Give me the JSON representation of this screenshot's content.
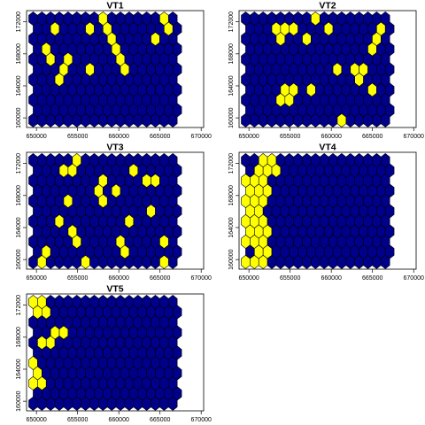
{
  "chart_data": [
    {
      "type": "hexbin-map",
      "title": "VT1",
      "xticks": [
        650000,
        655000,
        660000,
        665000,
        670000
      ],
      "yticks": [
        160000,
        164000,
        168000,
        172000
      ],
      "xlim": [
        648800,
        670300
      ],
      "ylim": [
        158800,
        173400
      ],
      "grid": {
        "x0": 649600,
        "dx": 1060,
        "y0": 159700,
        "dy": 1270,
        "rows": 11,
        "cols": 17
      },
      "highlighted": [
        [
          2,
          6
        ],
        [
          1,
          7
        ],
        [
          2,
          9
        ],
        [
          2,
          11
        ],
        [
          2,
          13
        ],
        [
          3,
          4
        ],
        [
          3,
          5
        ],
        [
          4,
          6
        ],
        [
          6,
          5
        ],
        [
          6,
          9
        ],
        [
          8,
          9
        ],
        [
          8,
          10
        ],
        [
          9,
          7
        ],
        [
          9,
          8
        ],
        [
          10,
          5
        ],
        [
          10,
          6
        ],
        [
          14,
          8
        ],
        [
          15,
          10
        ],
        [
          15,
          9
        ]
      ]
    },
    {
      "type": "hexbin-map",
      "title": "VT2",
      "xticks": [
        650000,
        655000,
        660000,
        665000,
        670000
      ],
      "yticks": [
        160000,
        164000,
        168000,
        172000
      ],
      "xlim": [
        648800,
        670300
      ],
      "ylim": [
        158800,
        173400
      ],
      "grid": {
        "x0": 649600,
        "dx": 1060,
        "y0": 159700,
        "dy": 1270,
        "rows": 11,
        "cols": 17
      },
      "highlighted": [
        [
          4,
          2
        ],
        [
          4,
          3
        ],
        [
          5,
          2
        ],
        [
          5,
          3
        ],
        [
          3,
          9
        ],
        [
          4,
          9
        ],
        [
          5,
          9
        ],
        [
          4,
          8
        ],
        [
          11,
          0
        ],
        [
          10,
          5
        ],
        [
          9,
          9
        ],
        [
          8,
          10
        ],
        [
          7,
          3
        ],
        [
          7,
          8
        ],
        [
          13,
          4
        ],
        [
          12,
          5
        ],
        [
          13,
          5
        ],
        [
          14,
          3
        ],
        [
          14,
          7
        ],
        [
          15,
          8
        ],
        [
          15,
          9
        ]
      ]
    },
    {
      "type": "hexbin-map",
      "title": "VT3",
      "xticks": [
        650000,
        655000,
        660000,
        665000,
        670000
      ],
      "yticks": [
        160000,
        164000,
        168000,
        172000
      ],
      "xlim": [
        648800,
        670300
      ],
      "ylim": [
        158800,
        173400
      ],
      "grid": {
        "x0": 649600,
        "dx": 1060,
        "y0": 159700,
        "dy": 1270,
        "rows": 11,
        "cols": 17
      },
      "highlighted": [
        [
          1,
          0
        ],
        [
          1,
          1
        ],
        [
          4,
          3
        ],
        [
          3,
          4
        ],
        [
          3,
          9
        ],
        [
          4,
          9
        ],
        [
          4,
          6
        ],
        [
          5,
          2
        ],
        [
          5,
          10
        ],
        [
          6,
          0
        ],
        [
          7,
          7
        ],
        [
          8,
          8
        ],
        [
          8,
          6
        ],
        [
          9,
          7
        ],
        [
          10,
          1
        ],
        [
          10,
          2
        ],
        [
          11,
          4
        ],
        [
          11,
          9
        ],
        [
          13,
          8
        ],
        [
          13,
          5
        ],
        [
          14,
          8
        ],
        [
          15,
          2
        ],
        [
          15,
          0
        ]
      ]
    },
    {
      "type": "hexbin-map",
      "title": "VT4",
      "xticks": [
        650000,
        655000,
        660000,
        665000,
        670000
      ],
      "yticks": [
        160000,
        164000,
        168000,
        172000
      ],
      "xlim": [
        648800,
        670300
      ],
      "ylim": [
        158800,
        173400
      ],
      "grid": {
        "x0": 649600,
        "dx": 1060,
        "y0": 159700,
        "dy": 1270,
        "rows": 11,
        "cols": 17
      },
      "highlighted": [
        [
          0,
          0
        ],
        [
          1,
          0
        ],
        [
          2,
          0
        ],
        [
          1,
          1
        ],
        [
          2,
          1
        ],
        [
          0,
          2
        ],
        [
          1,
          2
        ],
        [
          2,
          2
        ],
        [
          0,
          3
        ],
        [
          1,
          3
        ],
        [
          2,
          3
        ],
        [
          0,
          4
        ],
        [
          1,
          4
        ],
        [
          2,
          4
        ],
        [
          0,
          5
        ],
        [
          1,
          5
        ],
        [
          0,
          6
        ],
        [
          1,
          6
        ],
        [
          2,
          6
        ],
        [
          0,
          7
        ],
        [
          1,
          7
        ],
        [
          2,
          7
        ],
        [
          0,
          8
        ],
        [
          1,
          8
        ],
        [
          2,
          8
        ],
        [
          1,
          9
        ],
        [
          2,
          9
        ],
        [
          3,
          9
        ],
        [
          2,
          10
        ],
        [
          3,
          10
        ]
      ]
    },
    {
      "type": "hexbin-map",
      "title": "VT5",
      "xticks": [
        650000,
        655000,
        660000,
        665000,
        670000
      ],
      "yticks": [
        160000,
        164000,
        168000,
        172000
      ],
      "xlim": [
        648800,
        670300
      ],
      "ylim": [
        158800,
        173400
      ],
      "grid": {
        "x0": 649600,
        "dx": 1060,
        "y0": 159700,
        "dy": 1270,
        "rows": 11,
        "cols": 17
      },
      "highlighted": [
        [
          0,
          10
        ],
        [
          0,
          9
        ],
        [
          1,
          9
        ],
        [
          1,
          10
        ],
        [
          1,
          6
        ],
        [
          2,
          6
        ],
        [
          2,
          7
        ],
        [
          3,
          7
        ],
        [
          0,
          4
        ],
        [
          0,
          3
        ],
        [
          0,
          2
        ],
        [
          1,
          2
        ]
      ]
    }
  ],
  "colors": {
    "fill": "#00008B",
    "highlight": "#FFFF00",
    "stroke": "#000000",
    "background": "#FFFFFF"
  }
}
